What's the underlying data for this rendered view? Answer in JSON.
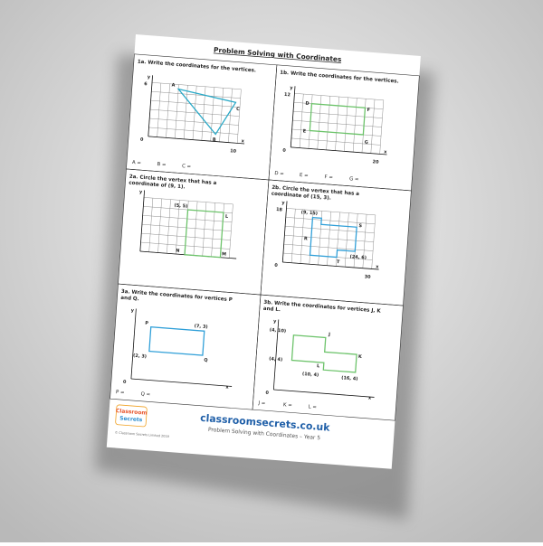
{
  "title": "Problem Solving with Coordinates",
  "panels": [
    {
      "question": [
        "1a. Write the coordinates for the vertices."
      ],
      "labels": [
        "y",
        "6",
        "0",
        "10",
        "x",
        "A",
        "B",
        "C"
      ],
      "answers": [
        "A =",
        "B =",
        "C ="
      ]
    },
    {
      "question": [
        "1b. Write the coordinates for the vertices."
      ],
      "labels": [
        "y",
        "12",
        "0",
        "20",
        "x",
        "D",
        "E",
        "F",
        "G"
      ],
      "answers": [
        "D =",
        "E =",
        "F =",
        "G ="
      ]
    },
    {
      "question": [
        "2a. Circle the vertex that has a",
        "coordinate of (9, 1)."
      ],
      "labels": [
        "y",
        "(5, 5)",
        "L",
        "N",
        "M"
      ],
      "answers": []
    },
    {
      "question": [
        "2b. Circle the vertex that has a",
        "coordinate of (15, 3)."
      ],
      "labels": [
        "y",
        "18",
        "0",
        "30",
        "x",
        "(9, 15)",
        "S",
        "R",
        "T",
        "(24, 6)"
      ],
      "answers": []
    },
    {
      "question": [
        "3a. Write the coordinates for vertices P",
        "and Q."
      ],
      "labels": [
        "y",
        "P",
        "(7, 3)",
        "(2, 3)",
        "Q",
        "0",
        "x"
      ],
      "answers": [
        "P =",
        "Q ="
      ]
    },
    {
      "question": [
        "3b. Write the coordinates for vertices J, K",
        "and L."
      ],
      "labels": [
        "y",
        "(4, 10)",
        "J",
        "(4, 4)",
        "L",
        "K",
        "(10, 4)",
        "(16, 4)",
        "0",
        "x"
      ],
      "answers": [
        "J =",
        "K =",
        "L ="
      ]
    }
  ],
  "footer": {
    "brand": [
      "Classroom",
      "Secrets"
    ],
    "copyright": "© Classroom Secrets Limited 2019",
    "site": "classroomsecrets.co.uk",
    "subtitle": "Problem Solving with Coordinates – Year 5"
  }
}
